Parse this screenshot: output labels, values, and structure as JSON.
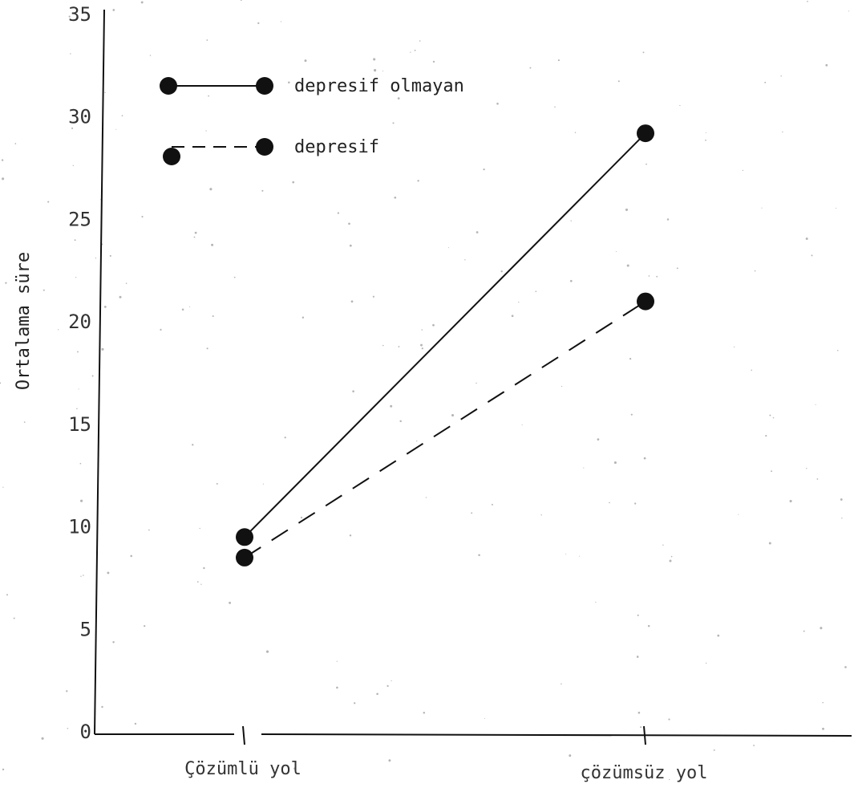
{
  "chart_data": {
    "type": "line",
    "title": "",
    "xlabel": "",
    "ylabel": "Ortalama süre",
    "categories": [
      "Çözümlü yol",
      "çözümsüz yol"
    ],
    "ylim": [
      0,
      35
    ],
    "yticks": [
      "0",
      "5",
      "10",
      "15",
      "20",
      "25",
      "30",
      "35"
    ],
    "grid": false,
    "legend_position": "top-left",
    "series": [
      {
        "name": "depresif olmayan",
        "style": "solid",
        "color": "#111111",
        "values": [
          9.5,
          29.2
        ]
      },
      {
        "name": "depresif",
        "style": "dashed",
        "color": "#111111",
        "values": [
          8.5,
          21.0
        ]
      }
    ]
  }
}
